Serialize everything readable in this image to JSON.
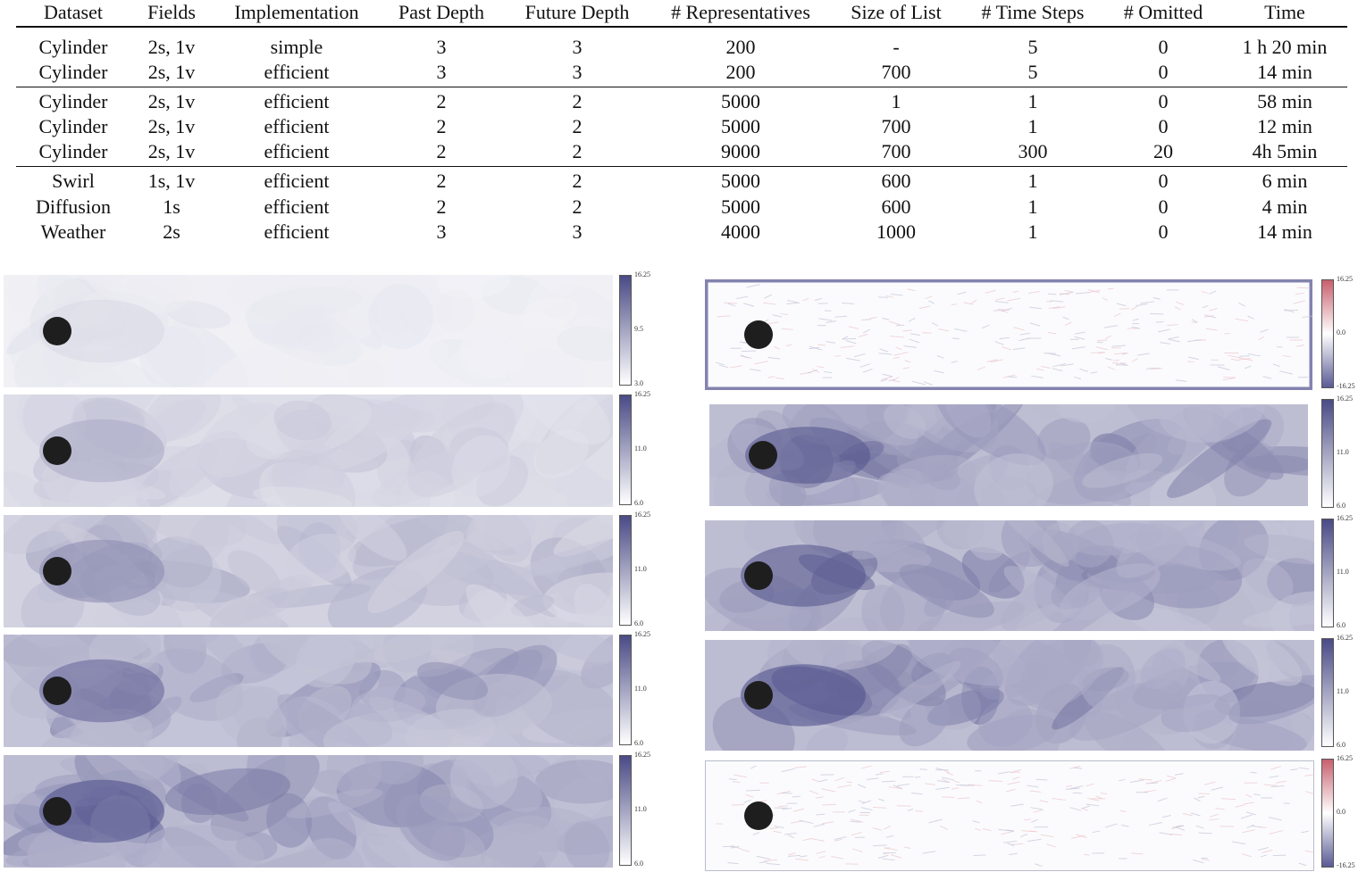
{
  "table": {
    "headers": [
      "Dataset",
      "Fields",
      "Implementation",
      "Past Depth",
      "Future Depth",
      "# Representatives",
      "Size of List",
      "# Time Steps",
      "# Omitted",
      "Time"
    ],
    "groups": [
      [
        [
          "Cylinder",
          "2s, 1v",
          "simple",
          "3",
          "3",
          "200",
          "-",
          "5",
          "0",
          "1 h 20 min"
        ],
        [
          "Cylinder",
          "2s, 1v",
          "efficient",
          "3",
          "3",
          "200",
          "700",
          "5",
          "0",
          "14 min"
        ]
      ],
      [
        [
          "Cylinder",
          "2s, 1v",
          "efficient",
          "2",
          "2",
          "5000",
          "1",
          "1",
          "0",
          "58 min"
        ],
        [
          "Cylinder",
          "2s, 1v",
          "efficient",
          "2",
          "2",
          "5000",
          "700",
          "1",
          "0",
          "12 min"
        ],
        [
          "Cylinder",
          "2s, 1v",
          "efficient",
          "2",
          "2",
          "9000",
          "700",
          "300",
          "20",
          "4h 5min"
        ]
      ],
      [
        [
          "Swirl",
          "1s, 1v",
          "efficient",
          "2",
          "2",
          "5000",
          "600",
          "1",
          "0",
          "6 min"
        ],
        [
          "Diffusion",
          "1s",
          "efficient",
          "2",
          "2",
          "5000",
          "600",
          "1",
          "0",
          "4 min"
        ],
        [
          "Weather",
          "2s",
          "efficient",
          "3",
          "3",
          "4000",
          "1000",
          "1",
          "0",
          "14 min"
        ]
      ]
    ]
  },
  "colors": {
    "seq_low": "#ffffff",
    "seq_high": "#4a4a86",
    "div_low": "#5a5a96",
    "div_mid": "#ffffff",
    "div_high": "#c8606e",
    "obstacle": "#1e1e1e"
  },
  "panels": {
    "left": [
      {
        "intensity": 0.18,
        "colorbar": {
          "max": "16.25",
          "mid": "9.5",
          "min": "3.0"
        }
      },
      {
        "intensity": 0.4,
        "colorbar": {
          "max": "16.25",
          "mid": "11.0",
          "min": "6.0"
        }
      },
      {
        "intensity": 0.55,
        "colorbar": {
          "max": "16.25",
          "mid": "11.0",
          "min": "6.0"
        }
      },
      {
        "intensity": 0.72,
        "colorbar": {
          "max": "16.25",
          "mid": "11.0",
          "min": "6.0"
        }
      },
      {
        "intensity": 0.82,
        "colorbar": {
          "max": "16.25",
          "mid": "11.0",
          "min": "6.0"
        }
      }
    ],
    "right": [
      {
        "kind": "diff",
        "colorbar": {
          "max": "16.25",
          "mid": "0.0",
          "min": "-16.25"
        }
      },
      {
        "kind": "field",
        "intensity": 0.8,
        "colorbar": {
          "max": "16.25",
          "mid": "11.0",
          "min": "6.0"
        }
      },
      {
        "kind": "field",
        "intensity": 0.8,
        "colorbar": {
          "max": "16.25",
          "mid": "11.0",
          "min": "6.0"
        }
      },
      {
        "kind": "field",
        "intensity": 0.82,
        "colorbar": {
          "max": "16.25",
          "mid": "11.0",
          "min": "6.0"
        }
      },
      {
        "kind": "diff",
        "colorbar": {
          "max": "16.25",
          "mid": "0.0",
          "min": "-16.25"
        }
      }
    ]
  }
}
